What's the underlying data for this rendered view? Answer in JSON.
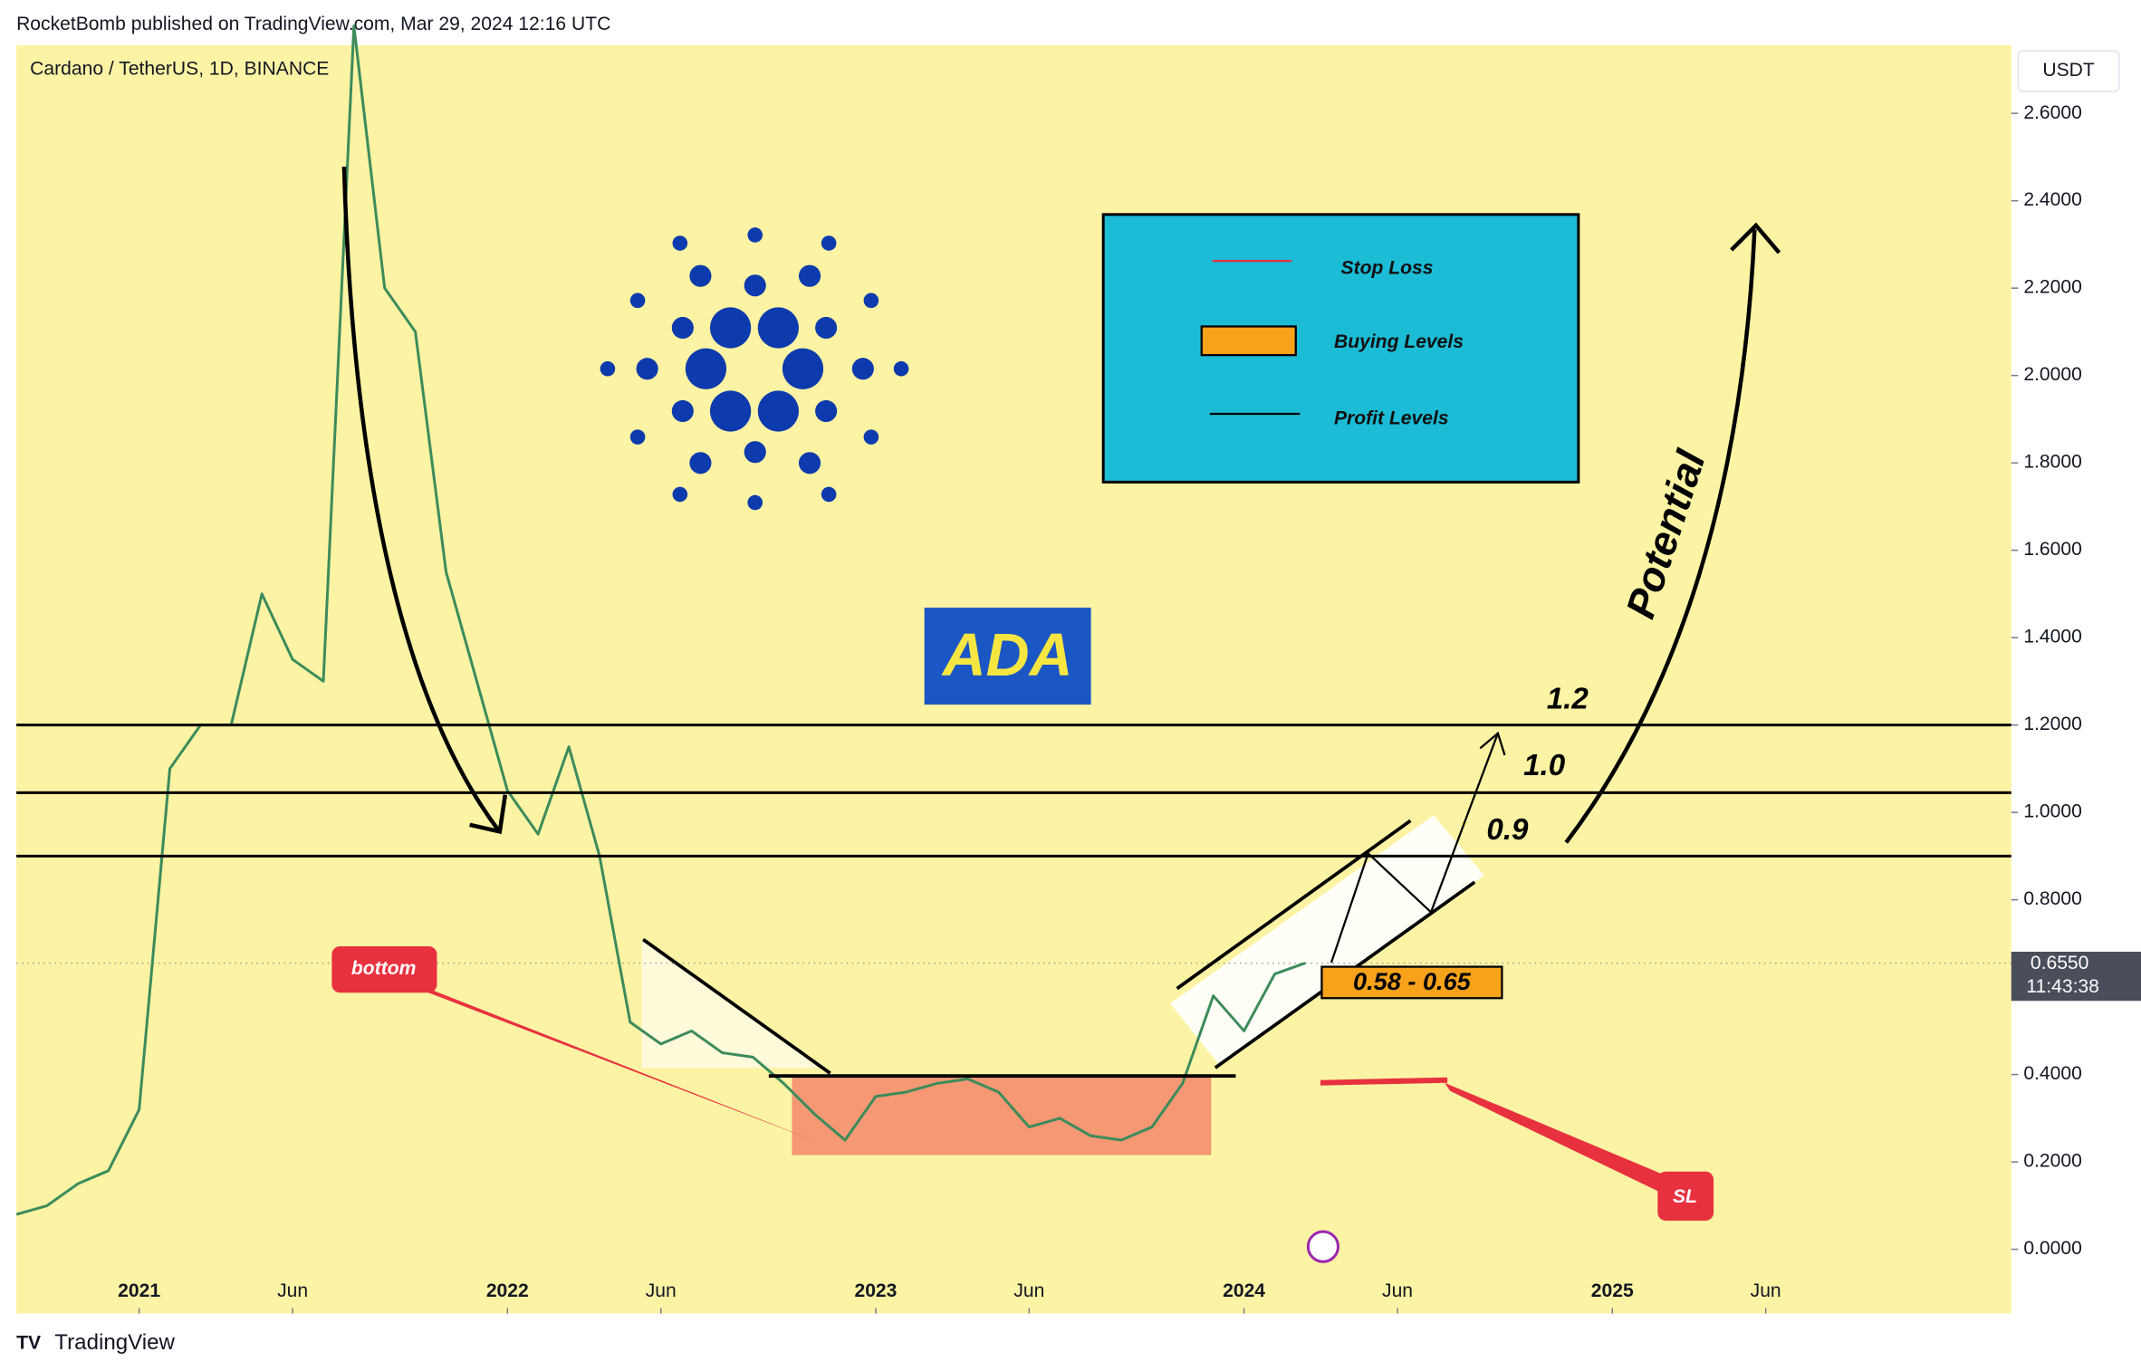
{
  "chart_data": {
    "type": "line",
    "header": "RocketBomb published on TradingView.com, Mar 29, 2024 12:16 UTC",
    "title": "Cardano / TetherUS, 1D, BINANCE",
    "currency": "USDT",
    "x": [
      "2020-09",
      "2020-10",
      "2020-11",
      "2020-12",
      "2021-01",
      "2021-02",
      "2021-03",
      "2021-04",
      "2021-05",
      "2021-06",
      "2021-07",
      "2021-08",
      "2021-09",
      "2021-10",
      "2021-11",
      "2021-12",
      "2022-01",
      "2022-02",
      "2022-03",
      "2022-04",
      "2022-05",
      "2022-06",
      "2022-07",
      "2022-08",
      "2022-09",
      "2022-10",
      "2022-11",
      "2022-12",
      "2023-01",
      "2023-02",
      "2023-03",
      "2023-04",
      "2023-05",
      "2023-06",
      "2023-07",
      "2023-08",
      "2023-09",
      "2023-10",
      "2023-11",
      "2023-12",
      "2024-01",
      "2024-02",
      "2024-03"
    ],
    "series": [
      {
        "color": "#3d8b5c",
        "values": [
          0.08,
          0.1,
          0.15,
          0.18,
          0.32,
          1.1,
          1.2,
          1.2,
          1.5,
          1.35,
          1.3,
          2.8,
          2.2,
          2.1,
          1.55,
          1.3,
          1.05,
          0.95,
          1.15,
          0.9,
          0.52,
          0.47,
          0.5,
          0.45,
          0.44,
          0.38,
          0.31,
          0.25,
          0.35,
          0.36,
          0.38,
          0.39,
          0.36,
          0.28,
          0.3,
          0.26,
          0.25,
          0.28,
          0.38,
          0.58,
          0.5,
          0.63,
          0.655
        ]
      }
    ],
    "xlim": [
      "2020-09",
      "2026-02"
    ],
    "xticks": [
      {
        "value": "2021-01",
        "label": "2021"
      },
      {
        "value": "2021-06",
        "label": "Jun"
      },
      {
        "value": "2022-01",
        "label": "2022"
      },
      {
        "value": "2022-06",
        "label": "Jun"
      },
      {
        "value": "2023-01",
        "label": "2023"
      },
      {
        "value": "2023-06",
        "label": "Jun"
      },
      {
        "value": "2024-01",
        "label": "2024"
      },
      {
        "value": "2024-06",
        "label": "Jun"
      },
      {
        "value": "2025-01",
        "label": "2025"
      },
      {
        "value": "2025-06",
        "label": "Jun"
      }
    ],
    "ylim": [
      -0.147,
      2.756
    ],
    "yticks": [
      {
        "value": 0,
        "label": "0.0000"
      },
      {
        "value": 0.2,
        "label": "0.2000"
      },
      {
        "value": 0.4,
        "label": "0.4000"
      },
      {
        "value": 0.8,
        "label": "0.8000"
      },
      {
        "value": 1,
        "label": "1.0000"
      },
      {
        "value": 1.2,
        "label": "1.2000"
      },
      {
        "value": 1.4,
        "label": "1.4000"
      },
      {
        "value": 1.6,
        "label": "1.6000"
      },
      {
        "value": 1.8,
        "label": "1.8000"
      },
      {
        "value": 2,
        "label": "2.0000"
      },
      {
        "value": 2.2,
        "label": "2.2000"
      },
      {
        "value": 2.4,
        "label": "2.4000"
      },
      {
        "value": 2.6,
        "label": "2.6000"
      }
    ],
    "last_price": {
      "value": 0.655,
      "label": "0.6550"
    },
    "countdown": "11:43:38",
    "levels": [
      {
        "value": 1.2,
        "label": "1.2"
      },
      {
        "value": 1.045,
        "label": "1.0"
      },
      {
        "value": 0.9,
        "label": "0.9"
      }
    ],
    "buy_zone_label": "0.58 - 0.65",
    "legend": [
      "Stop Loss",
      "Buying Levels",
      "Profit Levels"
    ],
    "annotations": {
      "coin": "ADA",
      "potential": "Potential",
      "bottom": "bottom",
      "sl": "SL"
    },
    "footer": "TradingView"
  }
}
